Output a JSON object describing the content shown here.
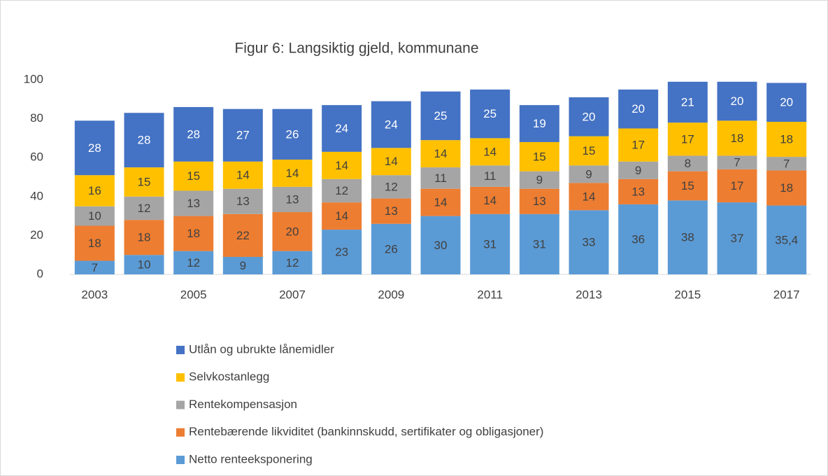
{
  "chart_data": {
    "type": "stacked_bar",
    "title": "Figur 6: Langsiktig gjeld, kommunane",
    "categories": [
      "2003",
      null,
      "2005",
      null,
      "2007",
      null,
      "2009",
      null,
      "2011",
      null,
      "2013",
      null,
      "2015",
      null,
      "2017"
    ],
    "series": [
      {
        "name": "Netto renteeksponering",
        "color": "#5b9bd5",
        "values": [
          7,
          10,
          12,
          9,
          12,
          23,
          26,
          30,
          31,
          31,
          33,
          36,
          38,
          37,
          35.4
        ],
        "value_labels": [
          "7",
          "10",
          "12",
          "9",
          "12",
          "23",
          "26",
          "30",
          "31",
          "31",
          "33",
          "36",
          "38",
          "37",
          "35,4"
        ]
      },
      {
        "name": "Rentebærende likviditet (bankinnskudd, sertifikater og obligasjoner)",
        "color": "#ed7d31",
        "values": [
          18,
          18,
          18,
          22,
          20,
          14,
          13,
          14,
          14,
          13,
          14,
          13,
          15,
          17,
          18
        ]
      },
      {
        "name": "Rentekompensasjon",
        "color": "#a5a5a5",
        "values": [
          10,
          12,
          13,
          13,
          13,
          12,
          12,
          11,
          11,
          9,
          9,
          9,
          8,
          7,
          7
        ]
      },
      {
        "name": "Selvkostanlegg",
        "color": "#ffc000",
        "values": [
          16,
          15,
          15,
          14,
          14,
          14,
          14,
          14,
          14,
          15,
          15,
          17,
          17,
          18,
          18
        ]
      },
      {
        "name": "Utlån og ubrukte lånemidler",
        "color": "#4472c4",
        "values": [
          28,
          28,
          28,
          27,
          26,
          24,
          24,
          25,
          25,
          19,
          20,
          20,
          21,
          20,
          20
        ]
      }
    ],
    "ylim": [
      0,
      100
    ],
    "yticks": [
      0,
      20,
      40,
      60,
      80,
      100
    ],
    "grid": false
  }
}
